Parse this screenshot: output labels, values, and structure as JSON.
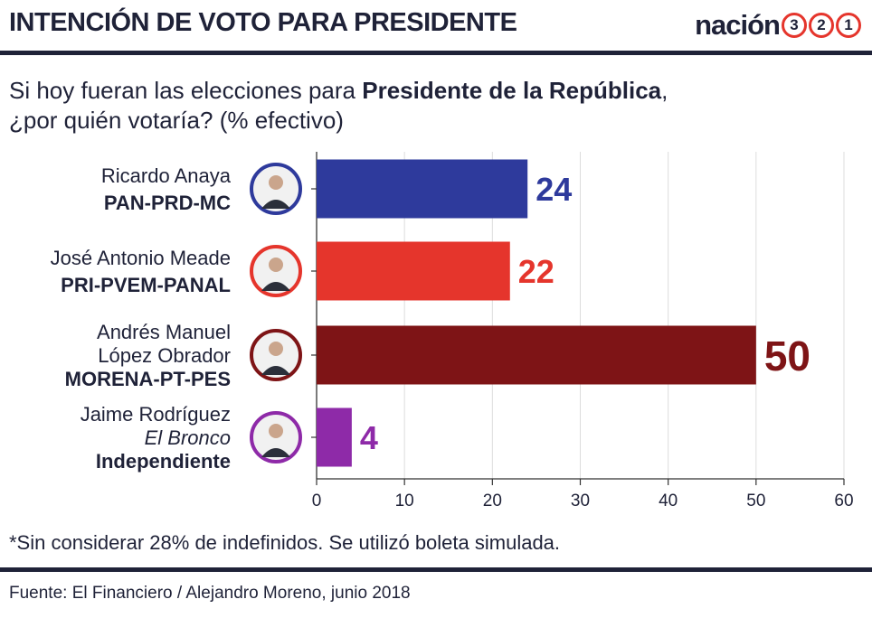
{
  "header": {
    "title": "INTENCIÓN DE VOTO PARA PRESIDENTE",
    "logo_word": "nación",
    "logo_digits": [
      "3",
      "2",
      "1"
    ]
  },
  "question": {
    "line1_pre": "Si hoy fueran las elecciones para ",
    "line1_bold": "Presidente de la República",
    "line1_post": ",",
    "line2": "¿por quién votaría? (% efectivo)"
  },
  "chart_data": {
    "type": "bar",
    "orientation": "horizontal",
    "categories": [
      {
        "name_lines": [
          "Ricardo Anaya"
        ],
        "italic_line": "",
        "party": "PAN-PRD-MC",
        "photo": "ricardo-anaya-photo",
        "color": "#2e3a9c"
      },
      {
        "name_lines": [
          "José Antonio Meade"
        ],
        "italic_line": "",
        "party": "PRI-PVEM-PANAL",
        "photo": "jose-antonio-meade-photo",
        "color": "#e5352c"
      },
      {
        "name_lines": [
          "Andrés Manuel",
          "López Obrador"
        ],
        "italic_line": "",
        "party": "MORENA-PT-PES",
        "photo": "lopez-obrador-photo",
        "color": "#7e1416"
      },
      {
        "name_lines": [
          "Jaime Rodríguez"
        ],
        "italic_line": "El Bronco",
        "party": "Independiente",
        "photo": "jaime-rodriguez-photo",
        "color": "#8e2aa8"
      }
    ],
    "values": [
      24,
      22,
      50,
      4
    ],
    "xlim": [
      0,
      60
    ],
    "xticks": [
      "0",
      "10",
      "20",
      "30",
      "40",
      "50",
      "60"
    ],
    "grid": true
  },
  "footer": {
    "note": "*Sin considerar 28% de indefinidos. Se utilizó boleta simulada.",
    "source": "Fuente: El Financiero / Alejandro Moreno, junio 2018"
  }
}
